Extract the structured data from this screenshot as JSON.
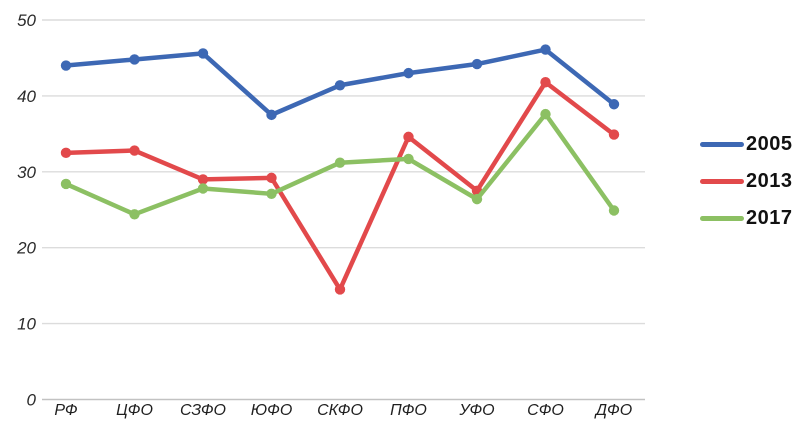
{
  "chart_data": {
    "type": "line",
    "title": "",
    "xlabel": "",
    "ylabel": "",
    "categories": [
      "РФ",
      "ЦФО",
      "СЗФО",
      "ЮФО",
      "СКФО",
      "ПФО",
      "УФО",
      "СФО",
      "ДФО"
    ],
    "series": [
      {
        "name": "2005",
        "color": "#3d68b4",
        "values": [
          44.0,
          44.8,
          45.6,
          37.5,
          41.4,
          43.0,
          44.2,
          46.1,
          38.9
        ]
      },
      {
        "name": "2013",
        "color": "#e2494b",
        "values": [
          32.5,
          32.8,
          29.0,
          29.2,
          14.5,
          34.6,
          27.5,
          41.8,
          34.9
        ]
      },
      {
        "name": "2017",
        "color": "#8cc063",
        "values": [
          28.4,
          24.4,
          27.8,
          27.1,
          31.2,
          31.7,
          26.4,
          37.6,
          24.9
        ]
      }
    ],
    "yticks": [
      0,
      10,
      20,
      30,
      40,
      50
    ],
    "ylim": [
      0,
      50
    ],
    "grid": true,
    "legend_position": "right",
    "gridline_color": "#dcdcdc",
    "axis_line_color": "#c2c2c2"
  }
}
